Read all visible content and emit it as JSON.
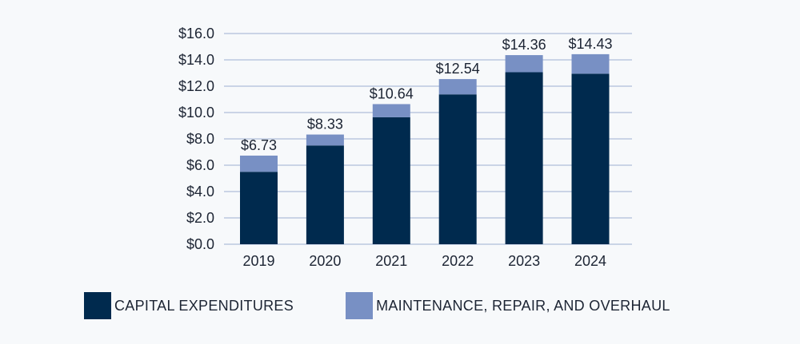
{
  "chart_data": {
    "type": "bar",
    "stacked": true,
    "categories": [
      "2019",
      "2020",
      "2021",
      "2022",
      "2023",
      "2024"
    ],
    "series": [
      {
        "name": "CAPITAL EXPENDITURES",
        "color": "#002a4e",
        "values": [
          5.5,
          7.5,
          9.64,
          11.38,
          13.06,
          12.95
        ]
      },
      {
        "name": "MAINTENANCE, REPAIR, AND OVERHAUL",
        "color": "#7890c4",
        "values": [
          1.23,
          0.83,
          1.0,
          1.16,
          1.3,
          1.48
        ]
      }
    ],
    "totals": [
      6.73,
      8.33,
      10.64,
      12.54,
      14.36,
      14.43
    ],
    "total_labels": [
      "$6.73",
      "$8.33",
      "$10.64",
      "$12.54",
      "$14.36",
      "$14.43"
    ],
    "y_ticks": [
      0,
      2,
      4,
      6,
      8,
      10,
      12,
      14,
      16
    ],
    "y_tick_labels": [
      "$0.0",
      "$2.0",
      "$4.0",
      "$6.0",
      "$8.0",
      "$10.0",
      "$12.0",
      "$14.0",
      "$16.0"
    ],
    "ylim": [
      0,
      16
    ],
    "grid": true,
    "legend_position": "bottom",
    "gridline_color": "#aebfd9",
    "title": "",
    "xlabel": "",
    "ylabel": ""
  },
  "legend": {
    "items": [
      {
        "label": "CAPITAL EXPENDITURES",
        "color": "#002a4e"
      },
      {
        "label": "MAINTENANCE, REPAIR, AND OVERHAUL",
        "color": "#7890c4"
      }
    ]
  }
}
